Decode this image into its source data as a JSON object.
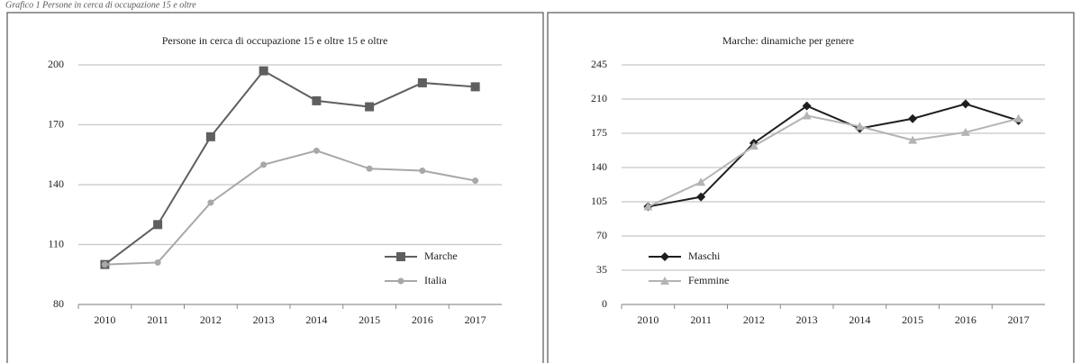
{
  "caption": "Grafico 1 Persone in cerca di occupazione 15 e oltre",
  "chart_data": [
    {
      "type": "line",
      "title": "Persone in cerca  di occupazione  15 e oltre 15 e oltre",
      "categories": [
        "2010",
        "2011",
        "2012",
        "2013",
        "2014",
        "2015",
        "2016",
        "2017"
      ],
      "series": [
        {
          "name": "Marche",
          "color": "#5f5f5f",
          "marker": "square",
          "values": [
            100,
            120,
            164,
            197,
            182,
            179,
            191,
            189
          ]
        },
        {
          "name": "Italia",
          "color": "#a8a8a8",
          "marker": "circle",
          "values": [
            100,
            101,
            131,
            150,
            157,
            148,
            147,
            142
          ]
        }
      ],
      "ylim": [
        80,
        200
      ],
      "yticks": [
        80,
        110,
        140,
        170,
        200
      ],
      "grid": true,
      "legend": "lower right"
    },
    {
      "type": "line",
      "title": "Marche: dinamiche per genere",
      "categories": [
        "2010",
        "2011",
        "2012",
        "2013",
        "2014",
        "2015",
        "2016",
        "2017"
      ],
      "series": [
        {
          "name": "Maschi",
          "color": "#1e1e1e",
          "marker": "diamond",
          "values": [
            100,
            110,
            165,
            203,
            180,
            190,
            205,
            188
          ]
        },
        {
          "name": "Femmine",
          "color": "#b4b4b4",
          "marker": "triangle",
          "values": [
            100,
            125,
            162,
            193,
            182,
            168,
            176,
            190
          ]
        }
      ],
      "ylim": [
        0,
        245
      ],
      "yticks": [
        0,
        35,
        70,
        105,
        140,
        175,
        210,
        245
      ],
      "grid": true,
      "legend": "lower left"
    }
  ]
}
